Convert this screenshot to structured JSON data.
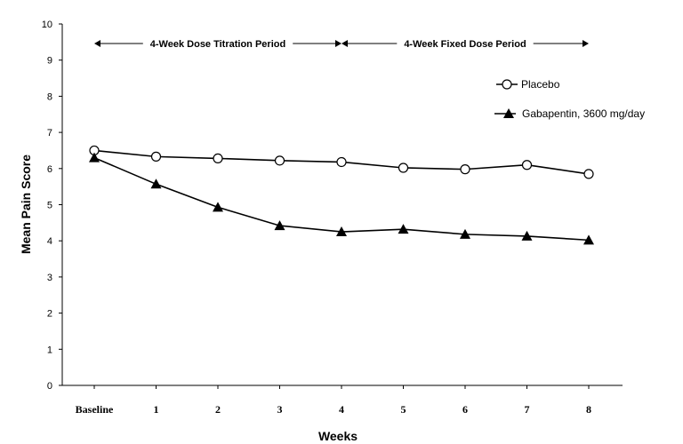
{
  "chart_data": {
    "type": "line",
    "xlabel": "Weeks",
    "ylabel": "Mean Pain Score",
    "ylim": [
      0,
      10
    ],
    "yticks": [
      "0",
      "1",
      "2",
      "3",
      "4",
      "5",
      "6",
      "7",
      "8",
      "9",
      "10"
    ],
    "categories": [
      "Baseline",
      "1",
      "2",
      "3",
      "4",
      "5",
      "6",
      "7",
      "8"
    ],
    "grid": false,
    "legend_position": "top-right",
    "periods": [
      {
        "label": "4-Week Dose Titration Period",
        "from": "Baseline",
        "to": "4"
      },
      {
        "label": "4-Week Fixed Dose Period",
        "from": "4",
        "to": "8"
      }
    ],
    "series": [
      {
        "name": "Placebo",
        "marker": "open-circle",
        "color": "#000000",
        "values": [
          6.5,
          6.33,
          6.28,
          6.22,
          6.18,
          6.02,
          5.98,
          6.1,
          5.85
        ]
      },
      {
        "name": "Gabapentin, 3600 mg/day",
        "marker": "filled-triangle",
        "color": "#000000",
        "values": [
          6.3,
          5.57,
          4.93,
          4.42,
          4.25,
          4.32,
          4.18,
          4.13,
          4.02
        ]
      }
    ]
  }
}
